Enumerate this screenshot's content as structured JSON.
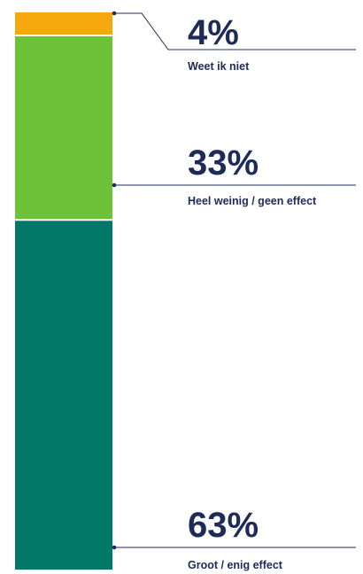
{
  "chart_data": {
    "type": "bar",
    "stacked": true,
    "categories": [
      "Weet ik niet",
      "Heel weinig / geen effect",
      "Groot / enig effect"
    ],
    "values": [
      4,
      33,
      63
    ],
    "value_labels": [
      "4%",
      "33%",
      "63%"
    ],
    "unit": "%",
    "ylim": [
      0,
      100
    ],
    "grid": false,
    "legend": "none"
  },
  "colors": {
    "segments": [
      "#F5A80E",
      "#6CC33A",
      "#02786A"
    ],
    "text": "#1E2B58",
    "leader": "#1E2B58"
  }
}
